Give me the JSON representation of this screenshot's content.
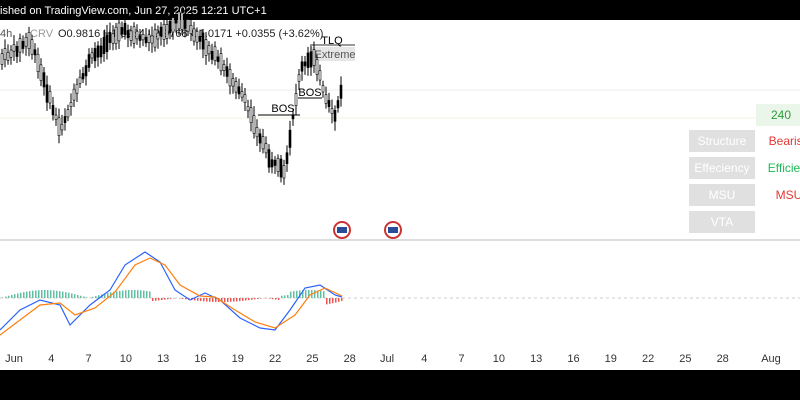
{
  "header": {
    "publish": "ished on TradingView.com, Jun 27, 2025 12:21 UTC+1",
    "interval": "4h",
    "symbol": "CRV",
    "ohlc": "O0.9816 H1.0284 L0.9768 C1.0171 +0.0355 (+3.62%)"
  },
  "labels": {
    "tlq": "TLQ",
    "extreme": "Extreme",
    "bos1": "BOS",
    "bos2": "BOS",
    "price": "240"
  },
  "table": {
    "rows": [
      [
        "Structure",
        "Bearish"
      ],
      [
        "Effeciency",
        "Efficient"
      ],
      [
        "MSU",
        "MSU"
      ],
      [
        "VTA",
        ""
      ]
    ]
  },
  "xaxis": [
    "Jun",
    "4",
    "7",
    "10",
    "13",
    "16",
    "19",
    "22",
    "25",
    "28",
    "Jul",
    "4",
    "7",
    "10",
    "13",
    "16",
    "19",
    "22",
    "25",
    "28",
    "Aug"
  ]
}
